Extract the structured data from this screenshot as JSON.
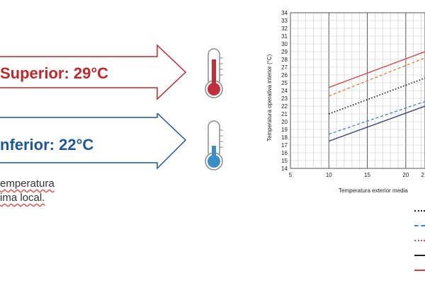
{
  "upper_label": "Superior: 29°C",
  "lower_label": "nferior: 22°C",
  "note": {
    "line1": "emperatura",
    "line2": "ima local."
  },
  "colors": {
    "upper": "#c0272d",
    "lower": "#1e5799",
    "bulb_upper": "#c0303a",
    "bulb_lower": "#3b8fc7"
  },
  "chart_data": {
    "type": "line",
    "xlabel": "Temperatura exterior media",
    "ylabel": "Temperatura operativa interior (°C)",
    "x_ticks": [
      "5",
      "10",
      "15",
      "20",
      "2"
    ],
    "y_ticks": [
      "14",
      "15",
      "16",
      "17",
      "18",
      "19",
      "20",
      "21",
      "22",
      "23",
      "24",
      "25",
      "26",
      "27",
      "28",
      "29",
      "30",
      "31",
      "32",
      "33",
      "34"
    ],
    "xlim": [
      5,
      22.5
    ],
    "ylim": [
      14,
      34
    ],
    "grid": true,
    "series": [
      {
        "style": "solid",
        "color": "#e03c3c",
        "x": [
          10,
          22.5
        ],
        "y": [
          24.4,
          29.0
        ]
      },
      {
        "style": "dashed",
        "color": "#e8793a",
        "x": [
          10,
          22.5
        ],
        "y": [
          23.3,
          28.2
        ]
      },
      {
        "style": "dotted",
        "color": "#222222",
        "x": [
          10,
          22.5
        ],
        "y": [
          21.0,
          25.6
        ]
      },
      {
        "style": "dashed",
        "color": "#3a82d0",
        "x": [
          10,
          22.5
        ],
        "y": [
          18.4,
          22.6
        ]
      },
      {
        "style": "solid",
        "color": "#2b3a7a",
        "x": [
          10,
          22.5
        ],
        "y": [
          17.5,
          22.0
        ]
      }
    ],
    "legend": [
      {
        "style": "dotted",
        "color": "#222222"
      },
      {
        "style": "dashed",
        "color": "#3a82d0"
      },
      {
        "style": "dotted",
        "color": "#e05050"
      },
      {
        "style": "solid",
        "color": "#222222"
      },
      {
        "style": "solid",
        "color": "#e03c3c"
      }
    ]
  }
}
